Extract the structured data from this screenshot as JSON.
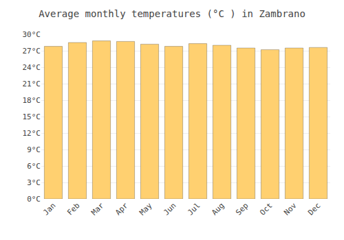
{
  "chart_data": {
    "type": "bar",
    "title": "Average monthly temperatures (°C ) in Zambrano",
    "categories": [
      "Jan",
      "Feb",
      "Mar",
      "Apr",
      "May",
      "Jun",
      "Jul",
      "Aug",
      "Sep",
      "Oct",
      "Nov",
      "Dec"
    ],
    "values": [
      27.8,
      28.5,
      28.8,
      28.7,
      28.2,
      27.8,
      28.3,
      28.0,
      27.5,
      27.2,
      27.5,
      27.6
    ],
    "color": "#FFD070",
    "ylim": [
      0,
      30
    ],
    "yticks": [
      {
        "value": 0,
        "label": "0°C"
      },
      {
        "value": 3,
        "label": "3°C"
      },
      {
        "value": 6,
        "label": "6°C"
      },
      {
        "value": 9,
        "label": "9°C"
      },
      {
        "value": 12,
        "label": "12°C"
      },
      {
        "value": 15,
        "label": "15°C"
      },
      {
        "value": 18,
        "label": "18°C"
      },
      {
        "value": 21,
        "label": "21°C"
      },
      {
        "value": 24,
        "label": "24°C"
      },
      {
        "value": 27,
        "label": "27°C"
      },
      {
        "value": 30,
        "label": "30°C"
      }
    ],
    "grid": true
  }
}
